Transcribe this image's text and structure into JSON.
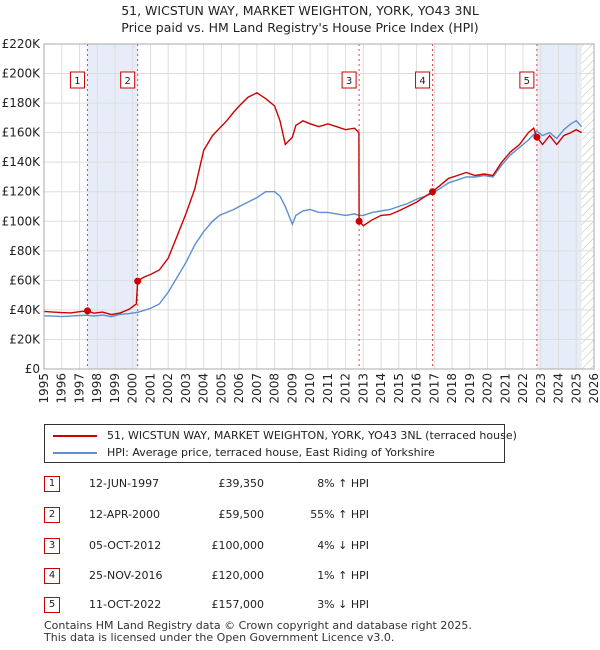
{
  "header": {
    "title_line1": "51, WICSTUN WAY, MARKET WEIGHTON, YORK, YO43 3NL",
    "title_line2": "Price paid vs. HM Land Registry's House Price Index (HPI)"
  },
  "chart_data": {
    "type": "line",
    "xlim": [
      1995,
      2026
    ],
    "ylim": [
      0,
      220000
    ],
    "y_ticks": [
      0,
      20000,
      40000,
      60000,
      80000,
      100000,
      120000,
      140000,
      160000,
      180000,
      200000,
      220000
    ],
    "y_tick_labels": [
      "£0",
      "£20K",
      "£40K",
      "£60K",
      "£80K",
      "£100K",
      "£120K",
      "£140K",
      "£160K",
      "£180K",
      "£200K",
      "£220K"
    ],
    "x_ticks": [
      1995,
      1996,
      1997,
      1998,
      1999,
      2000,
      2001,
      2002,
      2003,
      2004,
      2005,
      2006,
      2007,
      2008,
      2009,
      2010,
      2011,
      2012,
      2013,
      2014,
      2015,
      2016,
      2017,
      2018,
      2019,
      2020,
      2021,
      2022,
      2023,
      2024,
      2025,
      2026
    ],
    "x_tick_labels": [
      "1995",
      "1996",
      "1997",
      "1998",
      "1999",
      "2000",
      "2001",
      "2002",
      "2003",
      "2004",
      "2005",
      "2006",
      "2007",
      "2008",
      "2009",
      "2010",
      "2011",
      "2012",
      "2013",
      "2014",
      "2015",
      "2016",
      "2017",
      "2018",
      "2019",
      "2020",
      "2021",
      "2022",
      "2023",
      "2024",
      "2025",
      "2026"
    ],
    "grid": true,
    "shaded_periods": [
      [
        1997.45,
        2000.28
      ],
      [
        2022.78,
        2025.3
      ]
    ],
    "future_hatch_from": 2025.3,
    "series": [
      {
        "name": "51, WICSTUN WAY, MARKET WEIGHTON, YORK, YO43 3NL (terraced house)",
        "color": "#cc0000",
        "x": [
          1995,
          1995.5,
          1996,
          1996.5,
          1997,
          1997.45,
          1997.8,
          1998.3,
          1998.8,
          1999.3,
          1999.8,
          2000.2,
          2000.28,
          2000.6,
          2001,
          2001.5,
          2002,
          2002.5,
          2003,
          2003.5,
          2004,
          2004.5,
          2004.9,
          2005.3,
          2005.7,
          2006,
          2006.5,
          2007,
          2007.5,
          2008,
          2008.3,
          2008.6,
          2009,
          2009.2,
          2009.6,
          2010,
          2010.5,
          2011,
          2011.5,
          2012,
          2012.5,
          2012.75,
          2012.76,
          2013,
          2013.5,
          2014,
          2014.5,
          2015,
          2015.5,
          2016,
          2016.5,
          2016.9,
          2017.3,
          2017.8,
          2018.3,
          2018.8,
          2019.3,
          2019.8,
          2020.3,
          2020.8,
          2021.3,
          2021.8,
          2022.3,
          2022.6,
          2022.78,
          2023.1,
          2023.5,
          2023.9,
          2024.3,
          2024.7,
          2025.0,
          2025.3
        ],
        "y": [
          39000,
          38500,
          38200,
          38000,
          38800,
          39350,
          37800,
          38500,
          36800,
          38000,
          40500,
          44000,
          59500,
          62000,
          64000,
          67000,
          75000,
          90000,
          105000,
          122000,
          148000,
          158000,
          163000,
          168000,
          174000,
          178000,
          184000,
          187000,
          183000,
          178000,
          168000,
          152000,
          157000,
          165000,
          168000,
          166000,
          164000,
          166000,
          164000,
          162000,
          163000,
          160000,
          100000,
          97000,
          101000,
          104000,
          104500,
          107000,
          110000,
          113000,
          117000,
          120000,
          124000,
          129000,
          131000,
          133000,
          131000,
          132000,
          131000,
          140000,
          147000,
          152000,
          160000,
          163000,
          157000,
          152000,
          158000,
          152000,
          158000,
          160000,
          162000,
          160000
        ]
      },
      {
        "name": "HPI: Average price, terraced house, East Riding of Yorkshire",
        "color": "#5b8fd0",
        "x": [
          1995,
          1995.5,
          1996,
          1996.5,
          1997,
          1997.45,
          1997.8,
          1998.3,
          1998.8,
          1999.3,
          1999.8,
          2000.28,
          2000.6,
          2001,
          2001.5,
          2002,
          2002.5,
          2003,
          2003.5,
          2004,
          2004.5,
          2004.9,
          2005.3,
          2005.7,
          2006,
          2006.5,
          2007,
          2007.5,
          2008,
          2008.3,
          2008.6,
          2009,
          2009.2,
          2009.6,
          2010,
          2010.5,
          2011,
          2011.5,
          2012,
          2012.5,
          2012.76,
          2013,
          2013.5,
          2014,
          2014.5,
          2015,
          2015.5,
          2016,
          2016.5,
          2016.9,
          2017.3,
          2017.8,
          2018.3,
          2018.8,
          2019.3,
          2019.8,
          2020.3,
          2020.8,
          2021.3,
          2021.8,
          2022.3,
          2022.78,
          2023.1,
          2023.5,
          2023.9,
          2024.3,
          2024.7,
          2025.0,
          2025.3
        ],
        "y": [
          36000,
          35800,
          35500,
          35800,
          36200,
          36400,
          35800,
          36500,
          35500,
          37000,
          37500,
          38400,
          39500,
          41000,
          44000,
          52000,
          62000,
          72000,
          84000,
          93000,
          100000,
          104000,
          106000,
          108000,
          110000,
          113000,
          116000,
          120000,
          120000,
          117000,
          110000,
          98000,
          104000,
          107000,
          108000,
          106000,
          106000,
          105000,
          104000,
          105000,
          104000,
          104000,
          106000,
          107000,
          108000,
          110000,
          112000,
          115000,
          117000,
          119000,
          122000,
          126000,
          128000,
          130000,
          130000,
          131000,
          130000,
          138000,
          145000,
          150000,
          155000,
          161000,
          158000,
          160000,
          156000,
          162000,
          166000,
          168000,
          164000
        ]
      }
    ],
    "sales": [
      {
        "id": "1",
        "x": 1997.45,
        "y": 39350
      },
      {
        "id": "2",
        "x": 2000.28,
        "y": 59500
      },
      {
        "id": "3",
        "x": 2012.76,
        "y": 100000
      },
      {
        "id": "4",
        "x": 2016.9,
        "y": 120000
      },
      {
        "id": "5",
        "x": 2022.78,
        "y": 157000
      }
    ]
  },
  "legend": {
    "property_label": "51, WICSTUN WAY, MARKET WEIGHTON, YORK, YO43 3NL (terraced house)",
    "hpi_label": "HPI: Average price, terraced house, East Riding of Yorkshire"
  },
  "transactions": [
    {
      "num": "1",
      "date": "12-JUN-1997",
      "price": "£39,350",
      "hpi": "8% ↑ HPI"
    },
    {
      "num": "2",
      "date": "12-APR-2000",
      "price": "£59,500",
      "hpi": "55% ↑ HPI"
    },
    {
      "num": "3",
      "date": "05-OCT-2012",
      "price": "£100,000",
      "hpi": "4% ↓ HPI"
    },
    {
      "num": "4",
      "date": "25-NOV-2016",
      "price": "£120,000",
      "hpi": "1% ↑ HPI"
    },
    {
      "num": "5",
      "date": "11-OCT-2022",
      "price": "£157,000",
      "hpi": "3% ↓ HPI"
    }
  ],
  "footer": {
    "line1": "Contains HM Land Registry data © Crown copyright and database right 2025.",
    "line2": "This data is licensed under the Open Government Licence v3.0."
  }
}
